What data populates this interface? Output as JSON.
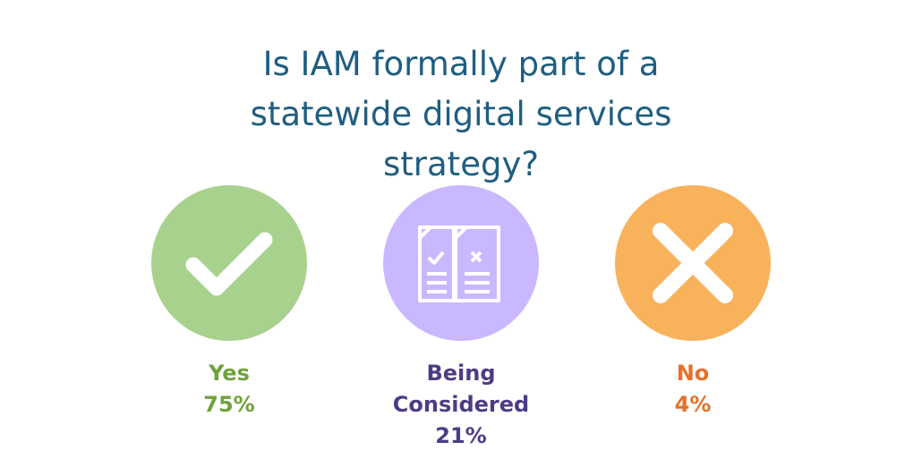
{
  "header": {
    "title": "Is IAM formally part of a statewide digital services strategy?"
  },
  "options": [
    {
      "label": "Yes",
      "value": "75%"
    },
    {
      "label": "Being Considered",
      "value": "21%"
    },
    {
      "label": "No",
      "value": "4%"
    }
  ]
}
